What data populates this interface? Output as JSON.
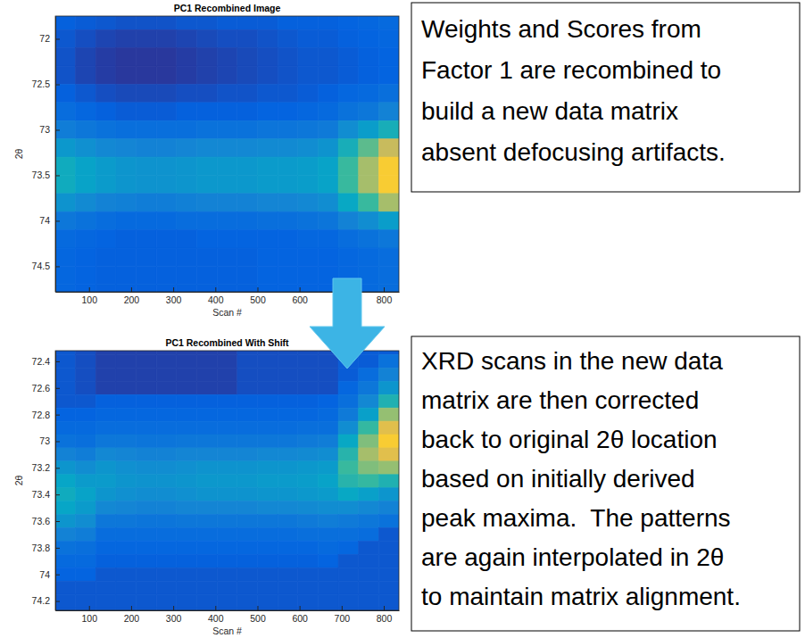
{
  "chart_data": [
    {
      "type": "heatmap",
      "title": "PC1 Recombined Image",
      "xlabel": "Scan #",
      "ylabel": "2θ",
      "annotation": [
        "Weights and Scores from",
        "Factor 1 are recombined to",
        "build a new data matrix",
        "absent defocusing artifacts."
      ],
      "xlim": [
        20,
        836
      ],
      "ylim": [
        71.75,
        74.78
      ],
      "xticks": [
        100,
        200,
        300,
        400,
        500,
        600,
        800
      ],
      "yticks": [
        72,
        72.5,
        73,
        73.5,
        74,
        74.5
      ],
      "zlim": [
        0,
        1
      ],
      "x": [
        44,
        92,
        140,
        188,
        236,
        284,
        332,
        380,
        428,
        476,
        524,
        572,
        620,
        668,
        716,
        764,
        812
      ],
      "y": [
        71.8,
        72.0,
        72.2,
        72.4,
        72.6,
        72.8,
        73.0,
        73.2,
        73.4,
        73.6,
        73.8,
        74.0,
        74.2,
        74.4,
        74.6,
        74.8
      ],
      "cells": [
        [
          0.12,
          0.11,
          0.1,
          0.09,
          0.09,
          0.09,
          0.1,
          0.1,
          0.11,
          0.11,
          0.11,
          0.12,
          0.12,
          0.12,
          0.13,
          0.14,
          0.15
        ],
        [
          0.1,
          0.08,
          0.06,
          0.05,
          0.05,
          0.05,
          0.06,
          0.07,
          0.08,
          0.08,
          0.09,
          0.1,
          0.11,
          0.11,
          0.12,
          0.13,
          0.14
        ],
        [
          0.09,
          0.06,
          0.04,
          0.03,
          0.03,
          0.03,
          0.04,
          0.05,
          0.06,
          0.07,
          0.08,
          0.09,
          0.1,
          0.1,
          0.11,
          0.12,
          0.13
        ],
        [
          0.09,
          0.06,
          0.04,
          0.03,
          0.03,
          0.03,
          0.04,
          0.05,
          0.06,
          0.07,
          0.08,
          0.09,
          0.1,
          0.1,
          0.11,
          0.12,
          0.13
        ],
        [
          0.12,
          0.1,
          0.08,
          0.07,
          0.07,
          0.07,
          0.08,
          0.08,
          0.09,
          0.09,
          0.1,
          0.1,
          0.11,
          0.12,
          0.14,
          0.15,
          0.17
        ],
        [
          0.16,
          0.14,
          0.12,
          0.11,
          0.11,
          0.11,
          0.12,
          0.12,
          0.12,
          0.12,
          0.13,
          0.13,
          0.14,
          0.15,
          0.18,
          0.2,
          0.24
        ],
        [
          0.22,
          0.2,
          0.18,
          0.17,
          0.17,
          0.17,
          0.17,
          0.18,
          0.18,
          0.18,
          0.19,
          0.19,
          0.2,
          0.21,
          0.28,
          0.34,
          0.42
        ],
        [
          0.32,
          0.29,
          0.26,
          0.25,
          0.24,
          0.24,
          0.25,
          0.26,
          0.26,
          0.26,
          0.27,
          0.27,
          0.28,
          0.3,
          0.42,
          0.55,
          0.72
        ],
        [
          0.4,
          0.36,
          0.33,
          0.31,
          0.3,
          0.3,
          0.31,
          0.32,
          0.32,
          0.32,
          0.33,
          0.33,
          0.34,
          0.36,
          0.5,
          0.66,
          0.86
        ],
        [
          0.4,
          0.36,
          0.33,
          0.31,
          0.3,
          0.3,
          0.31,
          0.32,
          0.32,
          0.32,
          0.33,
          0.33,
          0.34,
          0.36,
          0.5,
          0.66,
          0.86
        ],
        [
          0.3,
          0.27,
          0.24,
          0.23,
          0.22,
          0.22,
          0.23,
          0.24,
          0.24,
          0.24,
          0.25,
          0.25,
          0.26,
          0.28,
          0.38,
          0.5,
          0.66
        ],
        [
          0.2,
          0.18,
          0.16,
          0.15,
          0.15,
          0.15,
          0.16,
          0.16,
          0.16,
          0.16,
          0.17,
          0.17,
          0.18,
          0.19,
          0.24,
          0.28,
          0.34
        ],
        [
          0.15,
          0.14,
          0.13,
          0.12,
          0.12,
          0.12,
          0.12,
          0.13,
          0.13,
          0.13,
          0.13,
          0.13,
          0.14,
          0.14,
          0.16,
          0.18,
          0.2
        ],
        [
          0.14,
          0.13,
          0.12,
          0.12,
          0.12,
          0.12,
          0.12,
          0.12,
          0.12,
          0.12,
          0.13,
          0.13,
          0.13,
          0.13,
          0.14,
          0.15,
          0.16
        ],
        [
          0.14,
          0.13,
          0.12,
          0.12,
          0.12,
          0.12,
          0.12,
          0.12,
          0.12,
          0.12,
          0.13,
          0.13,
          0.13,
          0.13,
          0.14,
          0.15,
          0.16
        ],
        [
          0.14,
          0.13,
          0.12,
          0.12,
          0.12,
          0.12,
          0.12,
          0.12,
          0.12,
          0.12,
          0.13,
          0.13,
          0.13,
          0.13,
          0.14,
          0.15,
          0.16
        ]
      ]
    },
    {
      "type": "heatmap",
      "title": "PC1 Recombined With Shift",
      "xlabel": "Scan #",
      "ylabel": "2θ",
      "annotation": [
        "XRD scans in the new data",
        "matrix are then corrected",
        "back to original 2θ location",
        "based on initially derived",
        "peak maxima.  The patterns",
        "are again interpolated in 2θ",
        "to maintain matrix alignment."
      ],
      "xlim": [
        20,
        836
      ],
      "ylim": [
        72.32,
        74.27
      ],
      "xticks": [
        100,
        200,
        300,
        400,
        500,
        600,
        700,
        800
      ],
      "yticks": [
        72.4,
        72.6,
        72.8,
        73,
        73.2,
        73.4,
        73.6,
        73.8,
        74,
        74.2
      ],
      "zlim": [
        0,
        1
      ],
      "x": [
        44,
        92,
        140,
        188,
        236,
        284,
        332,
        380,
        428,
        476,
        524,
        572,
        620,
        668,
        716,
        764,
        812
      ],
      "y": [
        72.3,
        72.4,
        72.5,
        72.6,
        72.7,
        72.8,
        72.9,
        73.0,
        73.1,
        73.2,
        73.3,
        73.4,
        73.5,
        73.6,
        73.7,
        73.8,
        73.9,
        74.0,
        74.1,
        74.2,
        74.3
      ],
      "cells": [
        [
          0.1,
          0.08,
          0.05,
          0.05,
          0.05,
          0.05,
          0.05,
          0.05,
          0.05,
          0.08,
          0.08,
          0.08,
          0.08,
          0.08,
          0.11,
          0.11,
          0.11
        ],
        [
          0.1,
          0.08,
          0.05,
          0.05,
          0.05,
          0.05,
          0.05,
          0.05,
          0.05,
          0.08,
          0.08,
          0.08,
          0.08,
          0.08,
          0.11,
          0.11,
          0.18
        ],
        [
          0.1,
          0.08,
          0.05,
          0.05,
          0.05,
          0.05,
          0.05,
          0.05,
          0.05,
          0.08,
          0.08,
          0.08,
          0.08,
          0.08,
          0.11,
          0.16,
          0.24
        ],
        [
          0.1,
          0.08,
          0.05,
          0.05,
          0.05,
          0.05,
          0.05,
          0.05,
          0.05,
          0.08,
          0.08,
          0.08,
          0.08,
          0.08,
          0.14,
          0.2,
          0.31
        ],
        [
          0.1,
          0.1,
          0.12,
          0.12,
          0.12,
          0.12,
          0.12,
          0.12,
          0.12,
          0.12,
          0.12,
          0.12,
          0.12,
          0.13,
          0.17,
          0.26,
          0.44
        ],
        [
          0.13,
          0.13,
          0.14,
          0.14,
          0.14,
          0.14,
          0.14,
          0.14,
          0.14,
          0.14,
          0.14,
          0.14,
          0.14,
          0.15,
          0.21,
          0.35,
          0.63
        ],
        [
          0.15,
          0.15,
          0.16,
          0.16,
          0.16,
          0.16,
          0.16,
          0.16,
          0.16,
          0.16,
          0.16,
          0.16,
          0.17,
          0.17,
          0.28,
          0.49,
          0.78
        ],
        [
          0.18,
          0.17,
          0.2,
          0.2,
          0.19,
          0.19,
          0.2,
          0.2,
          0.2,
          0.2,
          0.2,
          0.2,
          0.21,
          0.22,
          0.38,
          0.6,
          0.86
        ],
        [
          0.24,
          0.22,
          0.26,
          0.25,
          0.24,
          0.24,
          0.25,
          0.25,
          0.25,
          0.25,
          0.26,
          0.26,
          0.27,
          0.28,
          0.46,
          0.66,
          0.78
        ],
        [
          0.31,
          0.28,
          0.31,
          0.29,
          0.28,
          0.28,
          0.29,
          0.3,
          0.3,
          0.3,
          0.31,
          0.31,
          0.32,
          0.33,
          0.5,
          0.6,
          0.63
        ],
        [
          0.37,
          0.33,
          0.33,
          0.31,
          0.3,
          0.3,
          0.31,
          0.32,
          0.32,
          0.32,
          0.33,
          0.33,
          0.34,
          0.36,
          0.46,
          0.49,
          0.44
        ],
        [
          0.4,
          0.36,
          0.31,
          0.29,
          0.28,
          0.28,
          0.29,
          0.3,
          0.3,
          0.3,
          0.31,
          0.31,
          0.32,
          0.33,
          0.38,
          0.35,
          0.31
        ],
        [
          0.37,
          0.33,
          0.26,
          0.25,
          0.24,
          0.24,
          0.25,
          0.25,
          0.25,
          0.25,
          0.26,
          0.26,
          0.27,
          0.28,
          0.28,
          0.26,
          0.24
        ],
        [
          0.31,
          0.28,
          0.2,
          0.2,
          0.19,
          0.19,
          0.2,
          0.2,
          0.2,
          0.2,
          0.2,
          0.2,
          0.21,
          0.22,
          0.21,
          0.2,
          0.18
        ],
        [
          0.24,
          0.22,
          0.16,
          0.16,
          0.16,
          0.16,
          0.16,
          0.16,
          0.16,
          0.16,
          0.16,
          0.16,
          0.17,
          0.17,
          0.17,
          0.16,
          0.1
        ],
        [
          0.18,
          0.17,
          0.14,
          0.14,
          0.14,
          0.14,
          0.14,
          0.14,
          0.14,
          0.14,
          0.14,
          0.14,
          0.14,
          0.15,
          0.14,
          0.1,
          0.1
        ],
        [
          0.15,
          0.15,
          0.12,
          0.12,
          0.12,
          0.12,
          0.12,
          0.12,
          0.12,
          0.12,
          0.12,
          0.12,
          0.12,
          0.13,
          0.1,
          0.1,
          0.1
        ],
        [
          0.13,
          0.13,
          0.1,
          0.1,
          0.1,
          0.1,
          0.1,
          0.1,
          0.1,
          0.1,
          0.1,
          0.1,
          0.1,
          0.1,
          0.1,
          0.1,
          0.1
        ],
        [
          0.1,
          0.1,
          0.1,
          0.1,
          0.1,
          0.1,
          0.1,
          0.1,
          0.1,
          0.1,
          0.1,
          0.1,
          0.1,
          0.1,
          0.1,
          0.1,
          0.1
        ],
        [
          0.1,
          0.1,
          0.1,
          0.1,
          0.1,
          0.1,
          0.1,
          0.1,
          0.1,
          0.1,
          0.1,
          0.1,
          0.1,
          0.1,
          0.1,
          0.1,
          0.1
        ],
        [
          0.1,
          0.1,
          0.1,
          0.1,
          0.1,
          0.1,
          0.1,
          0.1,
          0.1,
          0.1,
          0.1,
          0.1,
          0.1,
          0.1,
          0.1,
          0.1,
          0.1
        ]
      ]
    }
  ]
}
